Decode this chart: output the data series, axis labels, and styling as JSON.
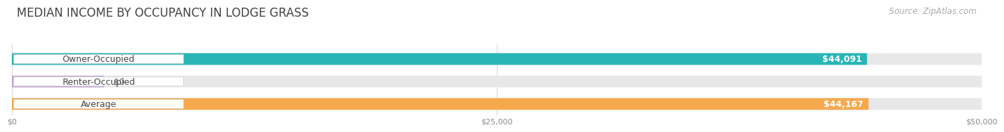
{
  "title": "MEDIAN INCOME BY OCCUPANCY IN LODGE GRASS",
  "source": "Source: ZipAtlas.com",
  "categories": [
    "Owner-Occupied",
    "Renter-Occupied",
    "Average"
  ],
  "values": [
    44091,
    0,
    44167
  ],
  "bar_colors": [
    "#29b5b5",
    "#c4a8d4",
    "#f5a94c"
  ],
  "bar_labels": [
    "$44,091",
    "$0",
    "$44,167"
  ],
  "xlim": [
    0,
    50000
  ],
  "xtick_labels": [
    "$0",
    "$25,000",
    "$50,000"
  ],
  "xtick_vals": [
    0,
    25000,
    50000
  ],
  "bar_bg_color": "#e8e8e8",
  "title_fontsize": 12,
  "source_fontsize": 8.5,
  "label_fontsize": 9,
  "value_fontsize": 9,
  "bar_height": 0.52,
  "fig_width": 14.06,
  "fig_height": 1.96
}
